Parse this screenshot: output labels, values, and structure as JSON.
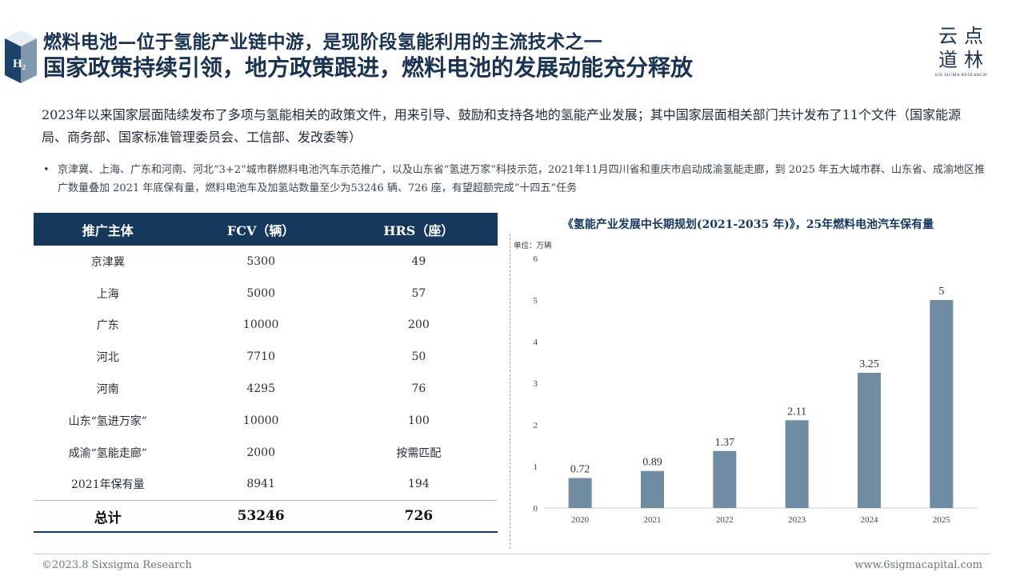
{
  "header": {
    "logo_letter": "H₂",
    "title_line1": "燃料电池—位于氢能产业链中游，是现阶段氢能利用的主流技术之一",
    "title_line2": "国家政策持续引领，地方政策跟进，燃料电池的发展动能充分释放",
    "brand_cn_line1": "云点",
    "brand_cn_line2": "道林",
    "brand_en": "SIX SIGMA RESEARCH"
  },
  "summary": "2023年以来国家层面陆续发布了多项与氢能相关的政策文件，用来引导、鼓励和支持各地的氢能产业发展；其中国家层面相关部门共计发布了11个文件（国家能源局、商务部、国家标准管理委员会、工信部、发改委等）",
  "bullet": {
    "dot": "•",
    "text": "京津冀、上海、广东和河南、河北“3+2”城市群燃料电池汽车示范推广，以及山东省“氢进万家”科技示范，2021年11月四川省和重庆市启动成渝氢能走廊，到 2025 年五大城市群、山东省、成渝地区推广数量叠加 2021 年底保有量，燃料电池车及加氢站数量至少为53246 辆、726 座，有望超额完成“十四五”任务"
  },
  "table": {
    "headers": [
      "推广主体",
      "FCV（辆）",
      "HRS（座）"
    ],
    "rows": [
      [
        "京津冀",
        "5300",
        "49"
      ],
      [
        "上海",
        "5000",
        "57"
      ],
      [
        "广东",
        "10000",
        "200"
      ],
      [
        "河北",
        "7710",
        "50"
      ],
      [
        "河南",
        "4295",
        "76"
      ],
      [
        "山东“氢进万家”",
        "10000",
        "100"
      ],
      [
        "成渝“氢能走廊”",
        "2000",
        "按需匹配"
      ],
      [
        "2021年保有量",
        "8941",
        "194"
      ]
    ],
    "total": [
      "总计",
      "53246",
      "726"
    ]
  },
  "chart": {
    "title": "《氢能产业发展中长期规划(2021-2035 年)》，25年燃料电池汽车保有量",
    "unit": "单位：万辆",
    "bar_color": "#6f8ca3"
  },
  "chart_data": {
    "type": "bar",
    "title": "《氢能产业发展中长期规划(2021-2035 年)》，25年燃料电池汽车保有量",
    "ylabel": "单位：万辆",
    "categories": [
      "2020",
      "2021",
      "2022",
      "2023",
      "2024",
      "2025"
    ],
    "values": [
      0.72,
      0.89,
      1.37,
      2.11,
      3.25,
      5
    ],
    "data_labels": [
      "0.72",
      "0.89",
      "1.37",
      "2.11",
      "3.25",
      "5"
    ],
    "ylim": [
      0,
      6
    ],
    "yticks": [
      "0",
      "1",
      "2",
      "3",
      "4",
      "5",
      "6"
    ],
    "grid": false,
    "legend": "none"
  },
  "footer": {
    "left": "©2023.8 Sixsigma Research",
    "right": "www.6sigmacapital.com"
  }
}
